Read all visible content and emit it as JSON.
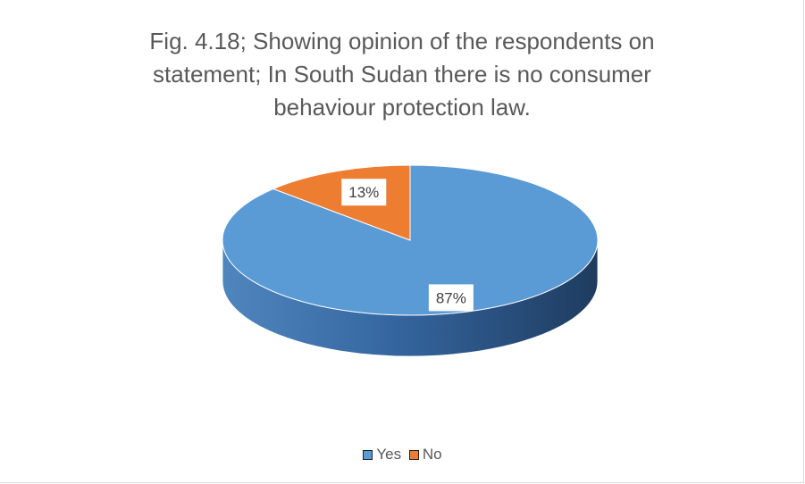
{
  "chart_data": {
    "type": "pie",
    "title_lines": [
      "Fig. 4.18; Showing opinion of the respondents on",
      "statement; In South Sudan there is no consumer",
      "behaviour protection law."
    ],
    "categories": [
      "Yes",
      "No"
    ],
    "values": [
      87,
      13
    ],
    "data_labels": [
      "87%",
      "13%"
    ],
    "colors": [
      "#5b9bd5",
      "#ed7d31"
    ],
    "legend_position": "bottom"
  }
}
